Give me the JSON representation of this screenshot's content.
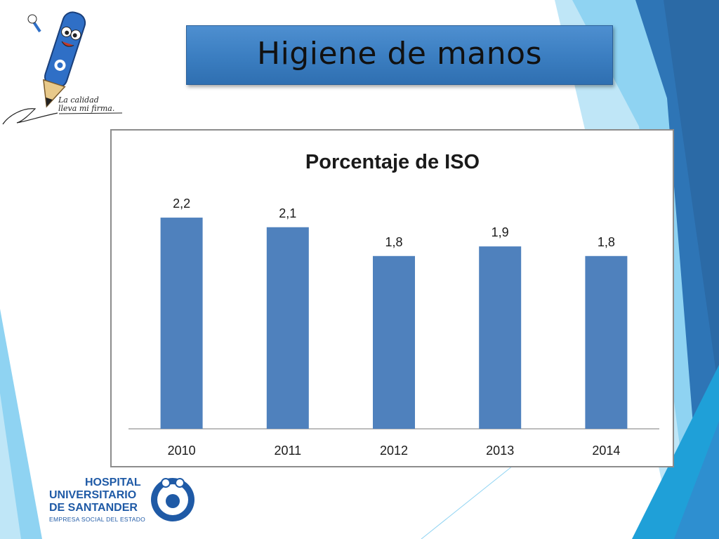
{
  "slide": {
    "title": "Higiene de manos",
    "slogan_line1": "La calidad",
    "slogan_line2": "lleva mi firma."
  },
  "hospital": {
    "line1": "HOSPITAL",
    "line2": "UNIVERSITARIO",
    "line3": "DE SANTANDER",
    "line4": "EMPRESA SOCIAL DEL ESTADO"
  },
  "colors": {
    "bar": "#4f81bd",
    "title_box": "#3c7fc2",
    "deco_dark": "#2e75b6",
    "deco_light": "#8fd3f2"
  },
  "chart_data": {
    "type": "bar",
    "title": "Porcentaje de ISO",
    "xlabel": "",
    "ylabel": "",
    "categories": [
      "2010",
      "2011",
      "2012",
      "2013",
      "2014"
    ],
    "values": [
      2.2,
      2.1,
      1.8,
      1.9,
      1.8
    ],
    "data_labels": [
      "2,2",
      "2,1",
      "1,8",
      "1,9",
      "1,8"
    ],
    "grid": false,
    "legend": "none"
  }
}
